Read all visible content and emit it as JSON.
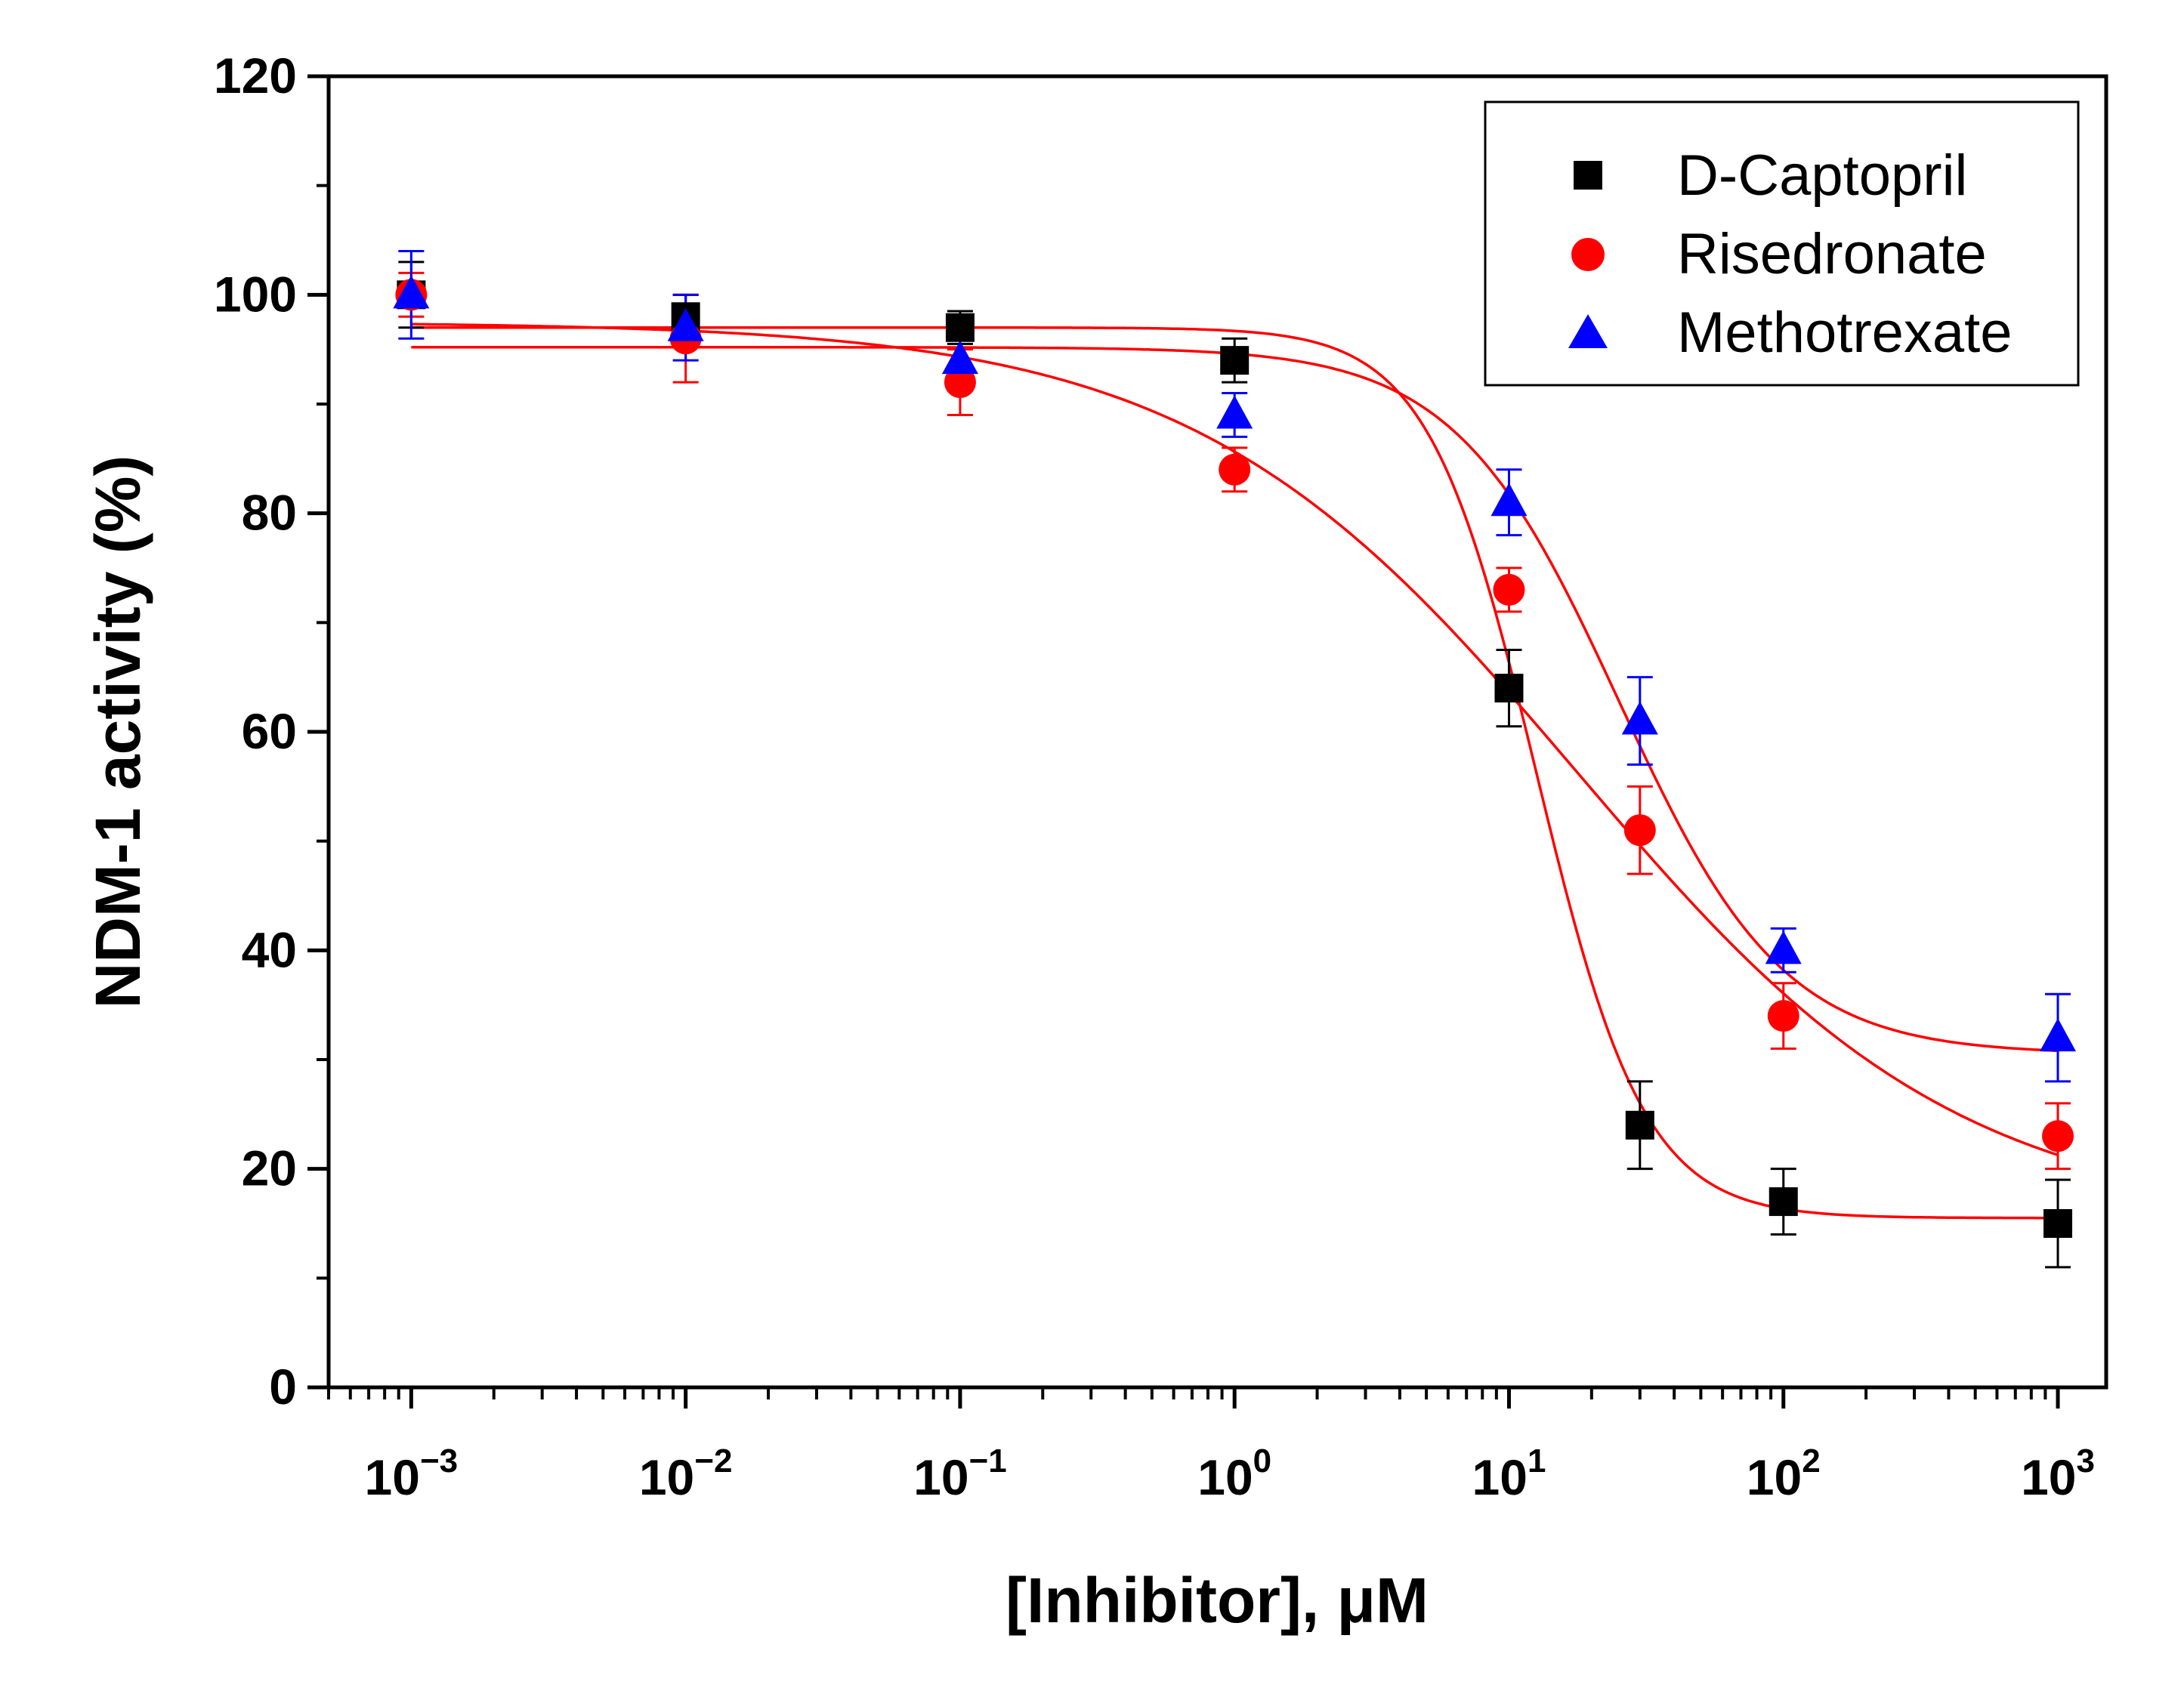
{
  "chart_data": {
    "type": "scatter",
    "xlabel": "[Inhibitor], μM",
    "ylabel": "NDM-1 activity (%)",
    "x_scale": "log",
    "xlim": [
      0.0005,
      1500
    ],
    "ylim": [
      0,
      120
    ],
    "y_ticks": [
      0,
      20,
      40,
      60,
      80,
      100,
      120
    ],
    "x_ticks": [
      {
        "value": 0.001,
        "base": "10",
        "exp": "−3"
      },
      {
        "value": 0.01,
        "base": "10",
        "exp": "−2"
      },
      {
        "value": 0.1,
        "base": "10",
        "exp": "−1"
      },
      {
        "value": 1,
        "base": "10",
        "exp": "0"
      },
      {
        "value": 10,
        "base": "10",
        "exp": "1"
      },
      {
        "value": 100,
        "base": "10",
        "exp": "2"
      },
      {
        "value": 1000,
        "base": "10",
        "exp": "3"
      }
    ],
    "grid": false,
    "legend_position": "top-right",
    "series": [
      {
        "name": "D-Captopril",
        "marker": "square",
        "color": "#000000",
        "error_color": "#000000",
        "points": [
          {
            "x": 0.001,
            "y": 100,
            "err": 3
          },
          {
            "x": 0.01,
            "y": 98,
            "err": 2
          },
          {
            "x": 0.1,
            "y": 97,
            "err": 1.5
          },
          {
            "x": 1,
            "y": 94,
            "err": 2
          },
          {
            "x": 10,
            "y": 64,
            "err": 3.5
          },
          {
            "x": 30,
            "y": 24,
            "err": 4
          },
          {
            "x": 100,
            "y": 17,
            "err": 3
          },
          {
            "x": 1000,
            "y": 15,
            "err": 4
          }
        ],
        "fit": {
          "top": 97,
          "bottom": 15.5,
          "logx50": 1.1,
          "hill": 2.2
        }
      },
      {
        "name": "Risedronate",
        "marker": "circle",
        "color": "#ff0000",
        "error_color": "#ff0000",
        "points": [
          {
            "x": 0.001,
            "y": 100,
            "err": 2
          },
          {
            "x": 0.01,
            "y": 96,
            "err": 4
          },
          {
            "x": 0.1,
            "y": 92,
            "err": 3
          },
          {
            "x": 1,
            "y": 84,
            "err": 2
          },
          {
            "x": 10,
            "y": 73,
            "err": 2
          },
          {
            "x": 30,
            "y": 51,
            "err": 4
          },
          {
            "x": 100,
            "y": 34,
            "err": 3
          },
          {
            "x": 1000,
            "y": 23,
            "err": 3
          }
        ],
        "fit": {
          "top": 97.5,
          "bottom": 15,
          "logx50": 1.25,
          "hill": 0.62
        }
      },
      {
        "name": "Methotrexate",
        "marker": "triangle",
        "color": "#0000ff",
        "error_color": "#0000ff",
        "points": [
          {
            "x": 0.001,
            "y": 100,
            "err": 4
          },
          {
            "x": 0.01,
            "y": 97,
            "err": 3
          },
          {
            "x": 0.1,
            "y": 94,
            "err": 2
          },
          {
            "x": 1,
            "y": 89,
            "err": 2
          },
          {
            "x": 10,
            "y": 81,
            "err": 3
          },
          {
            "x": 30,
            "y": 61,
            "err": 4
          },
          {
            "x": 100,
            "y": 40,
            "err": 2
          },
          {
            "x": 1000,
            "y": 32,
            "err": 4
          }
        ],
        "fit": {
          "top": 95.2,
          "bottom": 30.5,
          "logx50": 1.4,
          "hill": 1.45
        }
      }
    ]
  }
}
